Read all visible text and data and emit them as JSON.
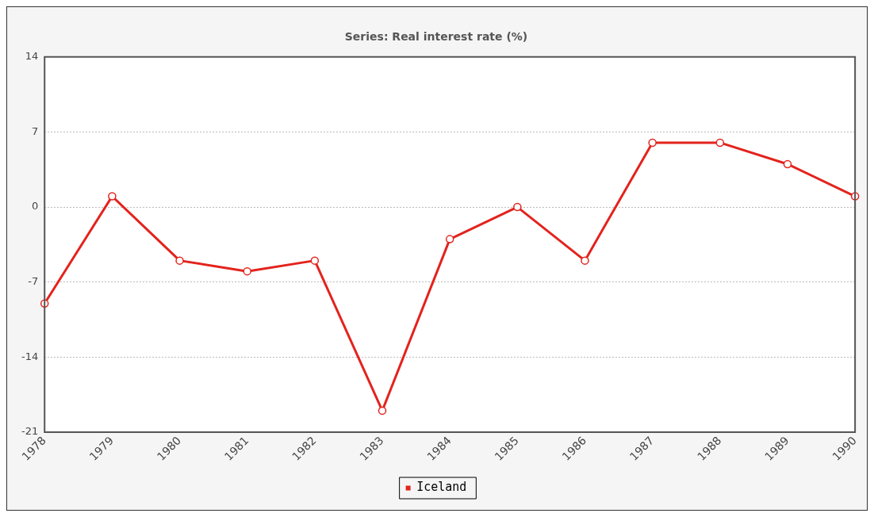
{
  "chart_data": {
    "type": "line",
    "title": "Series: Real interest rate (%)",
    "categories": [
      "1978",
      "1979",
      "1980",
      "1981",
      "1982",
      "1983",
      "1984",
      "1985",
      "1986",
      "1987",
      "1988",
      "1989",
      "1990"
    ],
    "series": [
      {
        "name": "Iceland",
        "color": "#e3231d",
        "values": [
          -9,
          1,
          -5,
          -6,
          -5,
          -19,
          -3,
          0,
          -5,
          6,
          6,
          4,
          1
        ]
      }
    ],
    "ylim": [
      -21,
      14
    ],
    "yticks": [
      -21,
      -14,
      -7,
      0,
      7,
      14
    ],
    "grid": "y",
    "legend": "bottom",
    "marker": "circle",
    "line_style": "solid"
  }
}
